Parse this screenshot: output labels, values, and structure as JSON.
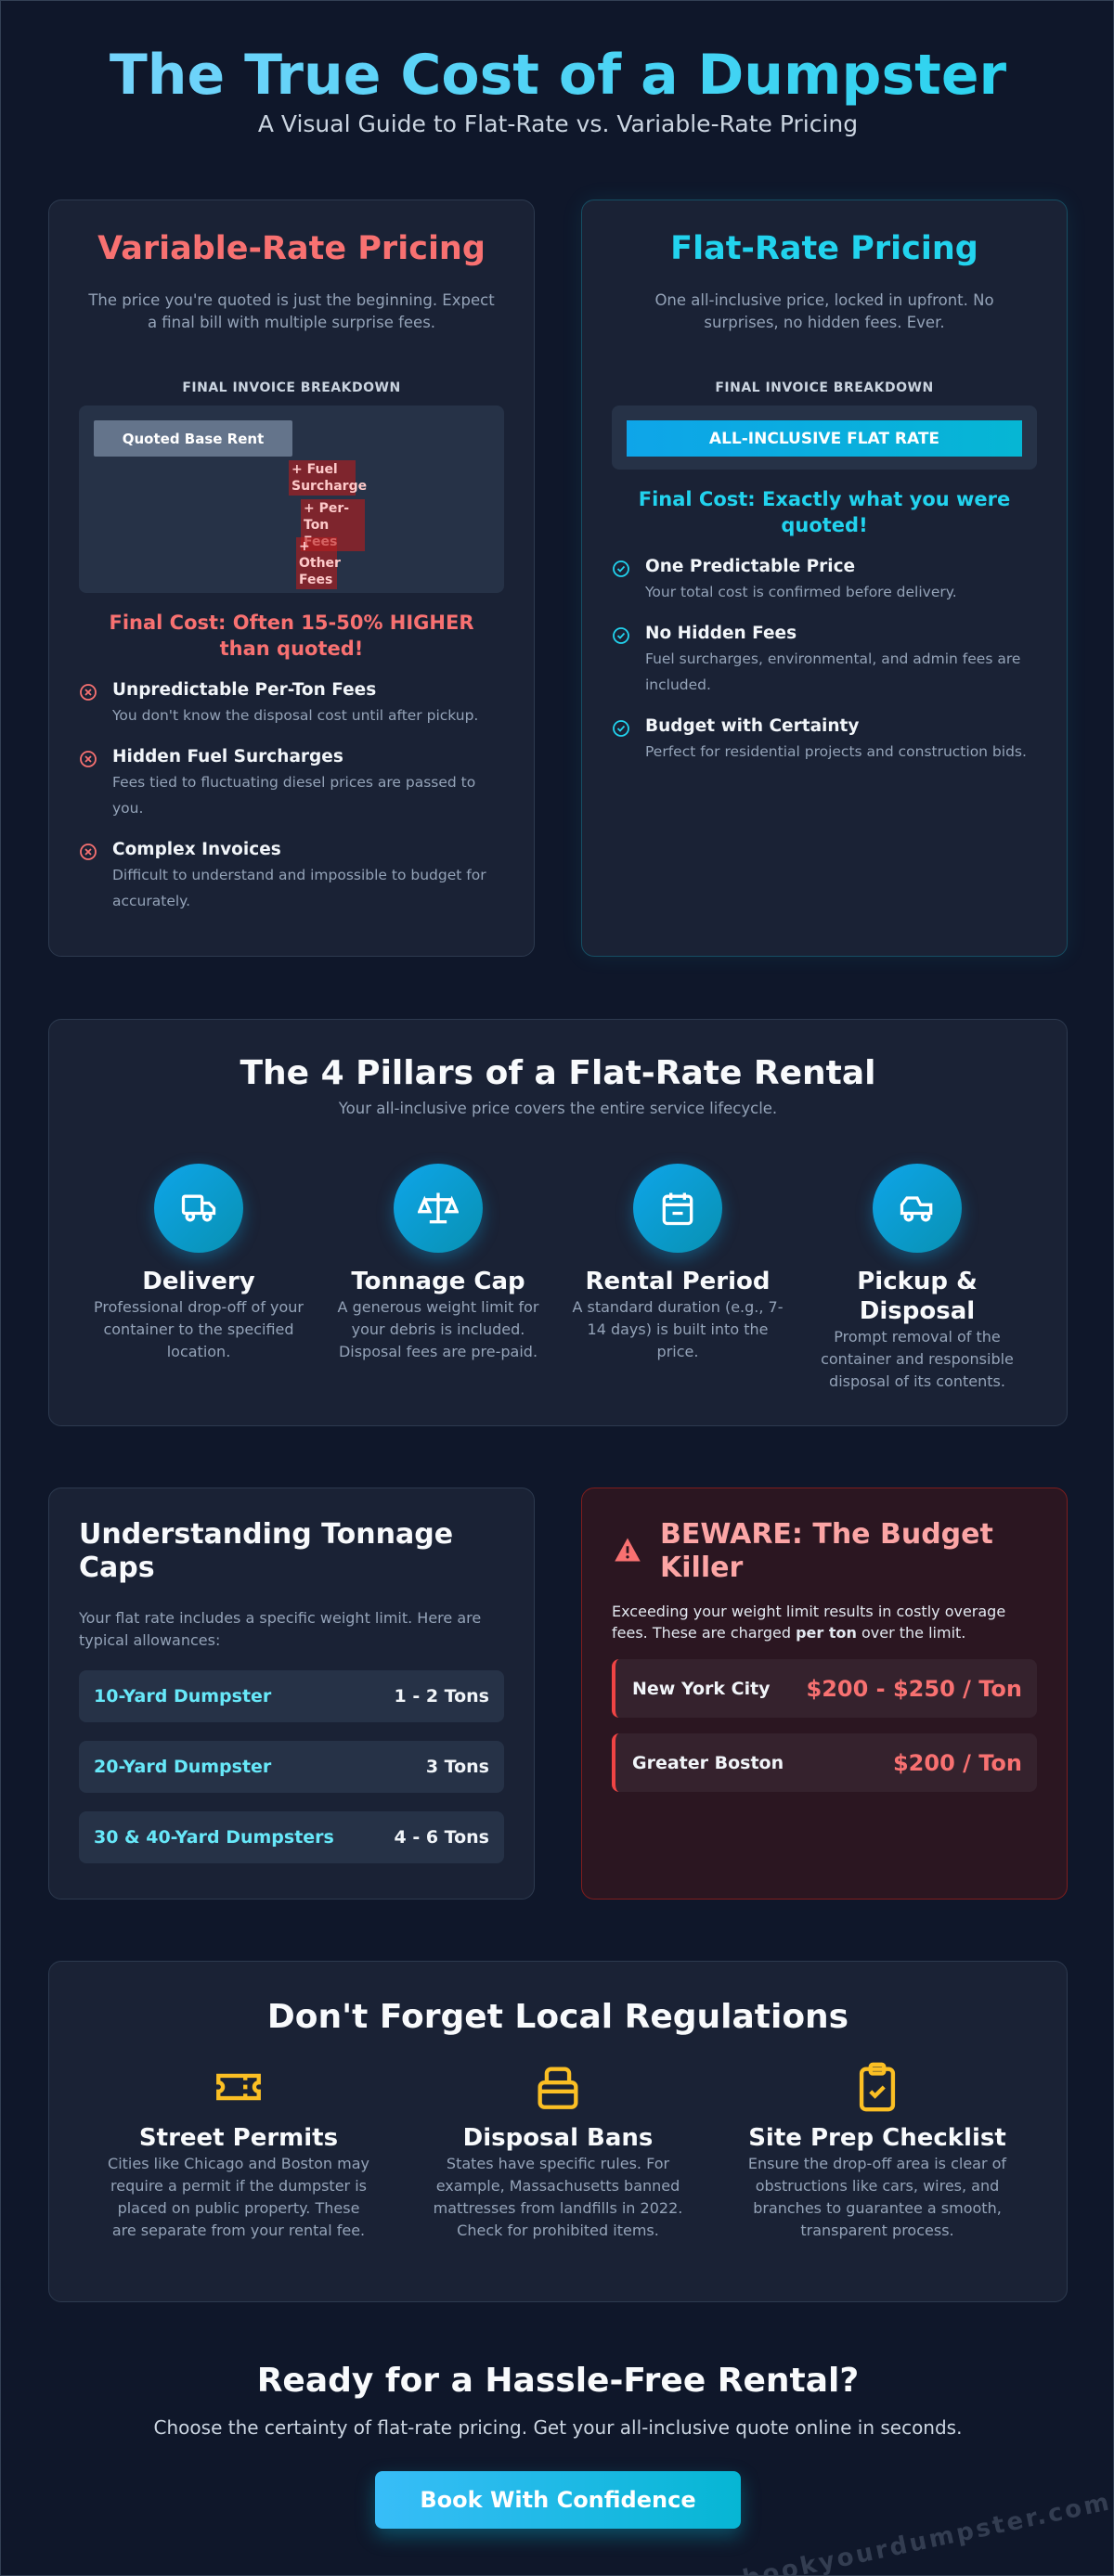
{
  "header": {
    "title": "The True Cost of a Dumpster",
    "subtitle": "A Visual Guide to Flat-Rate vs. Variable-Rate Pricing"
  },
  "comparison": [
    {
      "title": "Variable-Rate Pricing",
      "description": "The price you're quoted is just the beginning. Expect a final bill with multiple surprise fees.",
      "invoice_label": "FINAL INVOICE BREAKDOWN",
      "invoice_items": [
        "Quoted Base Rent",
        "+ Fuel Surcharge",
        "+ Per-Ton Fees",
        "+ Other Fees"
      ],
      "final_cost": "Final Cost: Often 15-50% HIGHER than quoted!",
      "features": [
        {
          "title": "Unpredictable Per-Ton Fees",
          "description": "You don't know the disposal cost until after pickup."
        },
        {
          "title": "Hidden Fuel Surcharges",
          "description": "Fees tied to fluctuating diesel prices are passed to you."
        },
        {
          "title": "Complex Invoices",
          "description": "Difficult to understand and impossible to budget for accurately."
        }
      ]
    },
    {
      "title": "Flat-Rate Pricing",
      "description": "One all-inclusive price, locked in upfront. No surprises, no hidden fees. Ever.",
      "invoice_label": "FINAL INVOICE BREAKDOWN",
      "invoice_items": [
        "ALL-INCLUSIVE FLAT RATE"
      ],
      "final_cost": "Final Cost: Exactly what you were quoted!",
      "features": [
        {
          "title": "One Predictable Price",
          "description": "Your total cost is confirmed before delivery."
        },
        {
          "title": "No Hidden Fees",
          "description": "Fuel surcharges, environmental, and admin fees are included."
        },
        {
          "title": "Budget with Certainty",
          "description": "Perfect for residential projects and construction bids."
        }
      ]
    }
  ],
  "pillars": {
    "title": "The 4 Pillars of a Flat-Rate Rental",
    "subtitle": "Your all-inclusive price covers the entire service lifecycle.",
    "items": [
      {
        "title": "Delivery",
        "description": "Professional drop-off of your container to the specified location."
      },
      {
        "title": "Tonnage Cap",
        "description": "A generous weight limit for your debris is included. Disposal fees are pre-paid."
      },
      {
        "title": "Rental Period",
        "description": "A standard duration (e.g., 7-14 days) is built into the price."
      },
      {
        "title": "Pickup & Disposal",
        "description": "Prompt removal of the container and responsible disposal of its contents."
      }
    ]
  },
  "tonnage": {
    "title": "Understanding Tonnage Caps",
    "description": "Your flat rate includes a specific weight limit. Here are typical allowances:",
    "rows": [
      {
        "size": "10-Yard Dumpster",
        "limit": "1 - 2 Tons"
      },
      {
        "size": "20-Yard Dumpster",
        "limit": "3 Tons"
      },
      {
        "size": "30 & 40-Yard Dumpsters",
        "limit": "4 - 6 Tons"
      }
    ]
  },
  "warning": {
    "title": "BEWARE: The Budget Killer",
    "description_before": "Exceeding your weight limit results in costly overage fees. These are charged ",
    "description_emphasis": "per ton",
    "description_after": " over the limit.",
    "rows": [
      {
        "city": "New York City",
        "price": "$200 - $250 / Ton"
      },
      {
        "city": "Greater Boston",
        "price": "$200 / Ton"
      }
    ]
  },
  "regulations": {
    "title": "Don't Forget Local Regulations",
    "items": [
      {
        "title": "Street Permits",
        "description": "Cities like Chicago and Boston may require a permit if the dumpster is placed on public property. These are separate from your rental fee."
      },
      {
        "title": "Disposal Bans",
        "description": "States have specific rules. For example, Massachusetts banned mattresses from landfills in 2022. Check for prohibited items."
      },
      {
        "title": "Site Prep Checklist",
        "description": "Ensure the drop-off area is clear of obstructions like cars, wires, and branches to guarantee a smooth, transparent process."
      }
    ]
  },
  "cta": {
    "title": "Ready for a Hassle-Free Rental?",
    "subtitle": "Choose the certainty of flat-rate pricing. Get your all-inclusive quote online in seconds.",
    "button": "Book With Confidence"
  },
  "watermark": "bookyourdumpster.com"
}
